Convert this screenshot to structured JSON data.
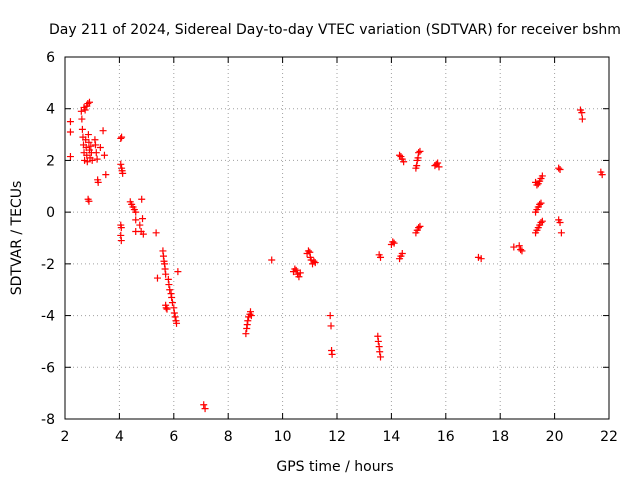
{
  "chart_data": {
    "type": "scatter",
    "title": "Day 211 of 2024, Sidereal Day-to-day VTEC variation (SDTVAR) for receiver bshm",
    "xlabel": "GPS time / hours",
    "ylabel": "SDTVAR / TECUs",
    "xlim": [
      2,
      22
    ],
    "ylim": [
      -8,
      6
    ],
    "x_ticks": [
      2,
      4,
      6,
      8,
      10,
      12,
      14,
      16,
      18,
      20,
      22
    ],
    "y_ticks": [
      -8,
      -6,
      -4,
      -2,
      0,
      2,
      4,
      6
    ],
    "x_tick_labels": [
      "2",
      "4",
      "6",
      "8",
      "10",
      "12",
      "14",
      "16",
      "18",
      "20",
      "22"
    ],
    "y_tick_labels": [
      "-8",
      "-6",
      "-4",
      "-2",
      "0",
      "2",
      "4",
      "6"
    ],
    "grid": true,
    "marker": "+",
    "colors": {
      "points": "#ff0000",
      "grid": "#a0a0a0",
      "axes": "#000000"
    },
    "series": [
      {
        "name": "SDTVAR",
        "points": [
          [
            2.2,
            3.5
          ],
          [
            2.2,
            3.1
          ],
          [
            2.2,
            2.15
          ],
          [
            2.6,
            3.9
          ],
          [
            2.62,
            3.6
          ],
          [
            2.64,
            3.2
          ],
          [
            2.66,
            2.9
          ],
          [
            2.68,
            2.6
          ],
          [
            2.7,
            2.3
          ],
          [
            2.72,
            2.0
          ],
          [
            2.7,
            4.05
          ],
          [
            2.74,
            3.95
          ],
          [
            2.76,
            2.8
          ],
          [
            2.78,
            2.5
          ],
          [
            2.8,
            2.2
          ],
          [
            2.82,
            1.95
          ],
          [
            2.8,
            4.1
          ],
          [
            2.84,
            4.2
          ],
          [
            2.86,
            3.0
          ],
          [
            2.88,
            2.7
          ],
          [
            2.9,
            2.4
          ],
          [
            2.92,
            2.1
          ],
          [
            2.9,
            4.25
          ],
          [
            2.95,
            2.55
          ],
          [
            2.97,
            2.3
          ],
          [
            3.0,
            2.0
          ],
          [
            2.85,
            0.5
          ],
          [
            2.88,
            0.42
          ],
          [
            3.1,
            2.8
          ],
          [
            3.12,
            2.6
          ],
          [
            3.15,
            2.3
          ],
          [
            3.18,
            2.05
          ],
          [
            3.2,
            1.25
          ],
          [
            3.22,
            1.15
          ],
          [
            3.3,
            2.5
          ],
          [
            3.4,
            3.15
          ],
          [
            3.45,
            2.2
          ],
          [
            3.5,
            1.45
          ],
          [
            4.05,
            2.85
          ],
          [
            4.08,
            2.9
          ],
          [
            4.05,
            1.85
          ],
          [
            4.08,
            1.7
          ],
          [
            4.1,
            1.6
          ],
          [
            4.12,
            1.5
          ],
          [
            4.05,
            -0.5
          ],
          [
            4.07,
            -0.6
          ],
          [
            4.05,
            -0.9
          ],
          [
            4.07,
            -1.1
          ],
          [
            4.4,
            0.4
          ],
          [
            4.45,
            0.3
          ],
          [
            4.5,
            0.2
          ],
          [
            4.55,
            0.1
          ],
          [
            4.6,
            0.0
          ],
          [
            4.6,
            -0.3
          ],
          [
            4.6,
            -0.75
          ],
          [
            4.75,
            -0.5
          ],
          [
            4.8,
            -0.75
          ],
          [
            4.82,
            0.5
          ],
          [
            4.85,
            -0.25
          ],
          [
            4.88,
            -0.85
          ],
          [
            5.35,
            -0.8
          ],
          [
            5.4,
            -2.55
          ],
          [
            5.6,
            -1.5
          ],
          [
            5.62,
            -1.7
          ],
          [
            5.64,
            -1.9
          ],
          [
            5.66,
            -2.0
          ],
          [
            5.68,
            -2.2
          ],
          [
            5.7,
            -2.4
          ],
          [
            5.7,
            -3.6
          ],
          [
            5.72,
            -3.7
          ],
          [
            5.75,
            -3.75
          ],
          [
            5.8,
            -2.6
          ],
          [
            5.82,
            -2.8
          ],
          [
            5.85,
            -3.0
          ],
          [
            5.9,
            -3.15
          ],
          [
            5.92,
            -3.3
          ],
          [
            5.95,
            -3.5
          ],
          [
            6.0,
            -3.7
          ],
          [
            6.02,
            -3.9
          ],
          [
            6.05,
            -4.05
          ],
          [
            6.08,
            -4.2
          ],
          [
            6.1,
            -4.3
          ],
          [
            6.15,
            -2.3
          ],
          [
            7.1,
            -7.45
          ],
          [
            7.15,
            -7.6
          ],
          [
            8.65,
            -4.7
          ],
          [
            8.68,
            -4.5
          ],
          [
            8.7,
            -4.35
          ],
          [
            8.72,
            -4.2
          ],
          [
            8.75,
            -4.05
          ],
          [
            8.8,
            -3.95
          ],
          [
            8.82,
            -3.85
          ],
          [
            8.85,
            -4.0
          ],
          [
            9.6,
            -1.85
          ],
          [
            10.4,
            -2.3
          ],
          [
            10.45,
            -2.2
          ],
          [
            10.5,
            -2.25
          ],
          [
            10.55,
            -2.4
          ],
          [
            10.6,
            -2.5
          ],
          [
            10.65,
            -2.35
          ],
          [
            10.9,
            -1.6
          ],
          [
            10.95,
            -1.5
          ],
          [
            11.0,
            -1.55
          ],
          [
            11.02,
            -1.75
          ],
          [
            11.05,
            -1.85
          ],
          [
            11.1,
            -2.0
          ],
          [
            11.15,
            -1.9
          ],
          [
            11.2,
            -1.95
          ],
          [
            11.75,
            -4.0
          ],
          [
            11.78,
            -4.4
          ],
          [
            11.8,
            -5.35
          ],
          [
            11.82,
            -5.5
          ],
          [
            13.5,
            -4.8
          ],
          [
            13.52,
            -5.0
          ],
          [
            13.55,
            -5.2
          ],
          [
            13.57,
            -5.4
          ],
          [
            13.6,
            -5.6
          ],
          [
            13.55,
            -1.65
          ],
          [
            13.6,
            -1.75
          ],
          [
            14.0,
            -1.25
          ],
          [
            14.05,
            -1.15
          ],
          [
            14.1,
            -1.2
          ],
          [
            14.3,
            2.2
          ],
          [
            14.35,
            2.15
          ],
          [
            14.4,
            2.05
          ],
          [
            14.45,
            1.95
          ],
          [
            14.3,
            -1.8
          ],
          [
            14.35,
            -1.7
          ],
          [
            14.4,
            -1.6
          ],
          [
            14.9,
            1.7
          ],
          [
            14.93,
            1.8
          ],
          [
            14.95,
            2.0
          ],
          [
            14.98,
            2.1
          ],
          [
            15.0,
            2.3
          ],
          [
            15.05,
            2.35
          ],
          [
            14.9,
            -0.8
          ],
          [
            14.95,
            -0.7
          ],
          [
            15.0,
            -0.6
          ],
          [
            15.05,
            -0.55
          ],
          [
            15.6,
            1.8
          ],
          [
            15.65,
            1.85
          ],
          [
            15.7,
            1.9
          ],
          [
            15.75,
            1.75
          ],
          [
            17.2,
            -1.75
          ],
          [
            17.3,
            -1.8
          ],
          [
            18.5,
            -1.35
          ],
          [
            18.7,
            -1.3
          ],
          [
            18.75,
            -1.45
          ],
          [
            18.8,
            -1.5
          ],
          [
            19.3,
            1.15
          ],
          [
            19.35,
            1.05
          ],
          [
            19.4,
            1.1
          ],
          [
            19.45,
            1.2
          ],
          [
            19.5,
            1.3
          ],
          [
            19.55,
            1.4
          ],
          [
            19.3,
            0.0
          ],
          [
            19.35,
            0.1
          ],
          [
            19.4,
            0.2
          ],
          [
            19.45,
            0.3
          ],
          [
            19.5,
            0.35
          ],
          [
            19.3,
            -0.8
          ],
          [
            19.35,
            -0.7
          ],
          [
            19.4,
            -0.6
          ],
          [
            19.45,
            -0.5
          ],
          [
            19.5,
            -0.4
          ],
          [
            19.55,
            -0.35
          ],
          [
            20.15,
            1.7
          ],
          [
            20.2,
            1.65
          ],
          [
            20.15,
            -0.3
          ],
          [
            20.2,
            -0.4
          ],
          [
            20.25,
            -0.8
          ],
          [
            20.95,
            3.95
          ],
          [
            21.0,
            3.85
          ],
          [
            21.02,
            3.6
          ],
          [
            21.7,
            1.55
          ],
          [
            21.75,
            1.45
          ]
        ]
      }
    ]
  }
}
